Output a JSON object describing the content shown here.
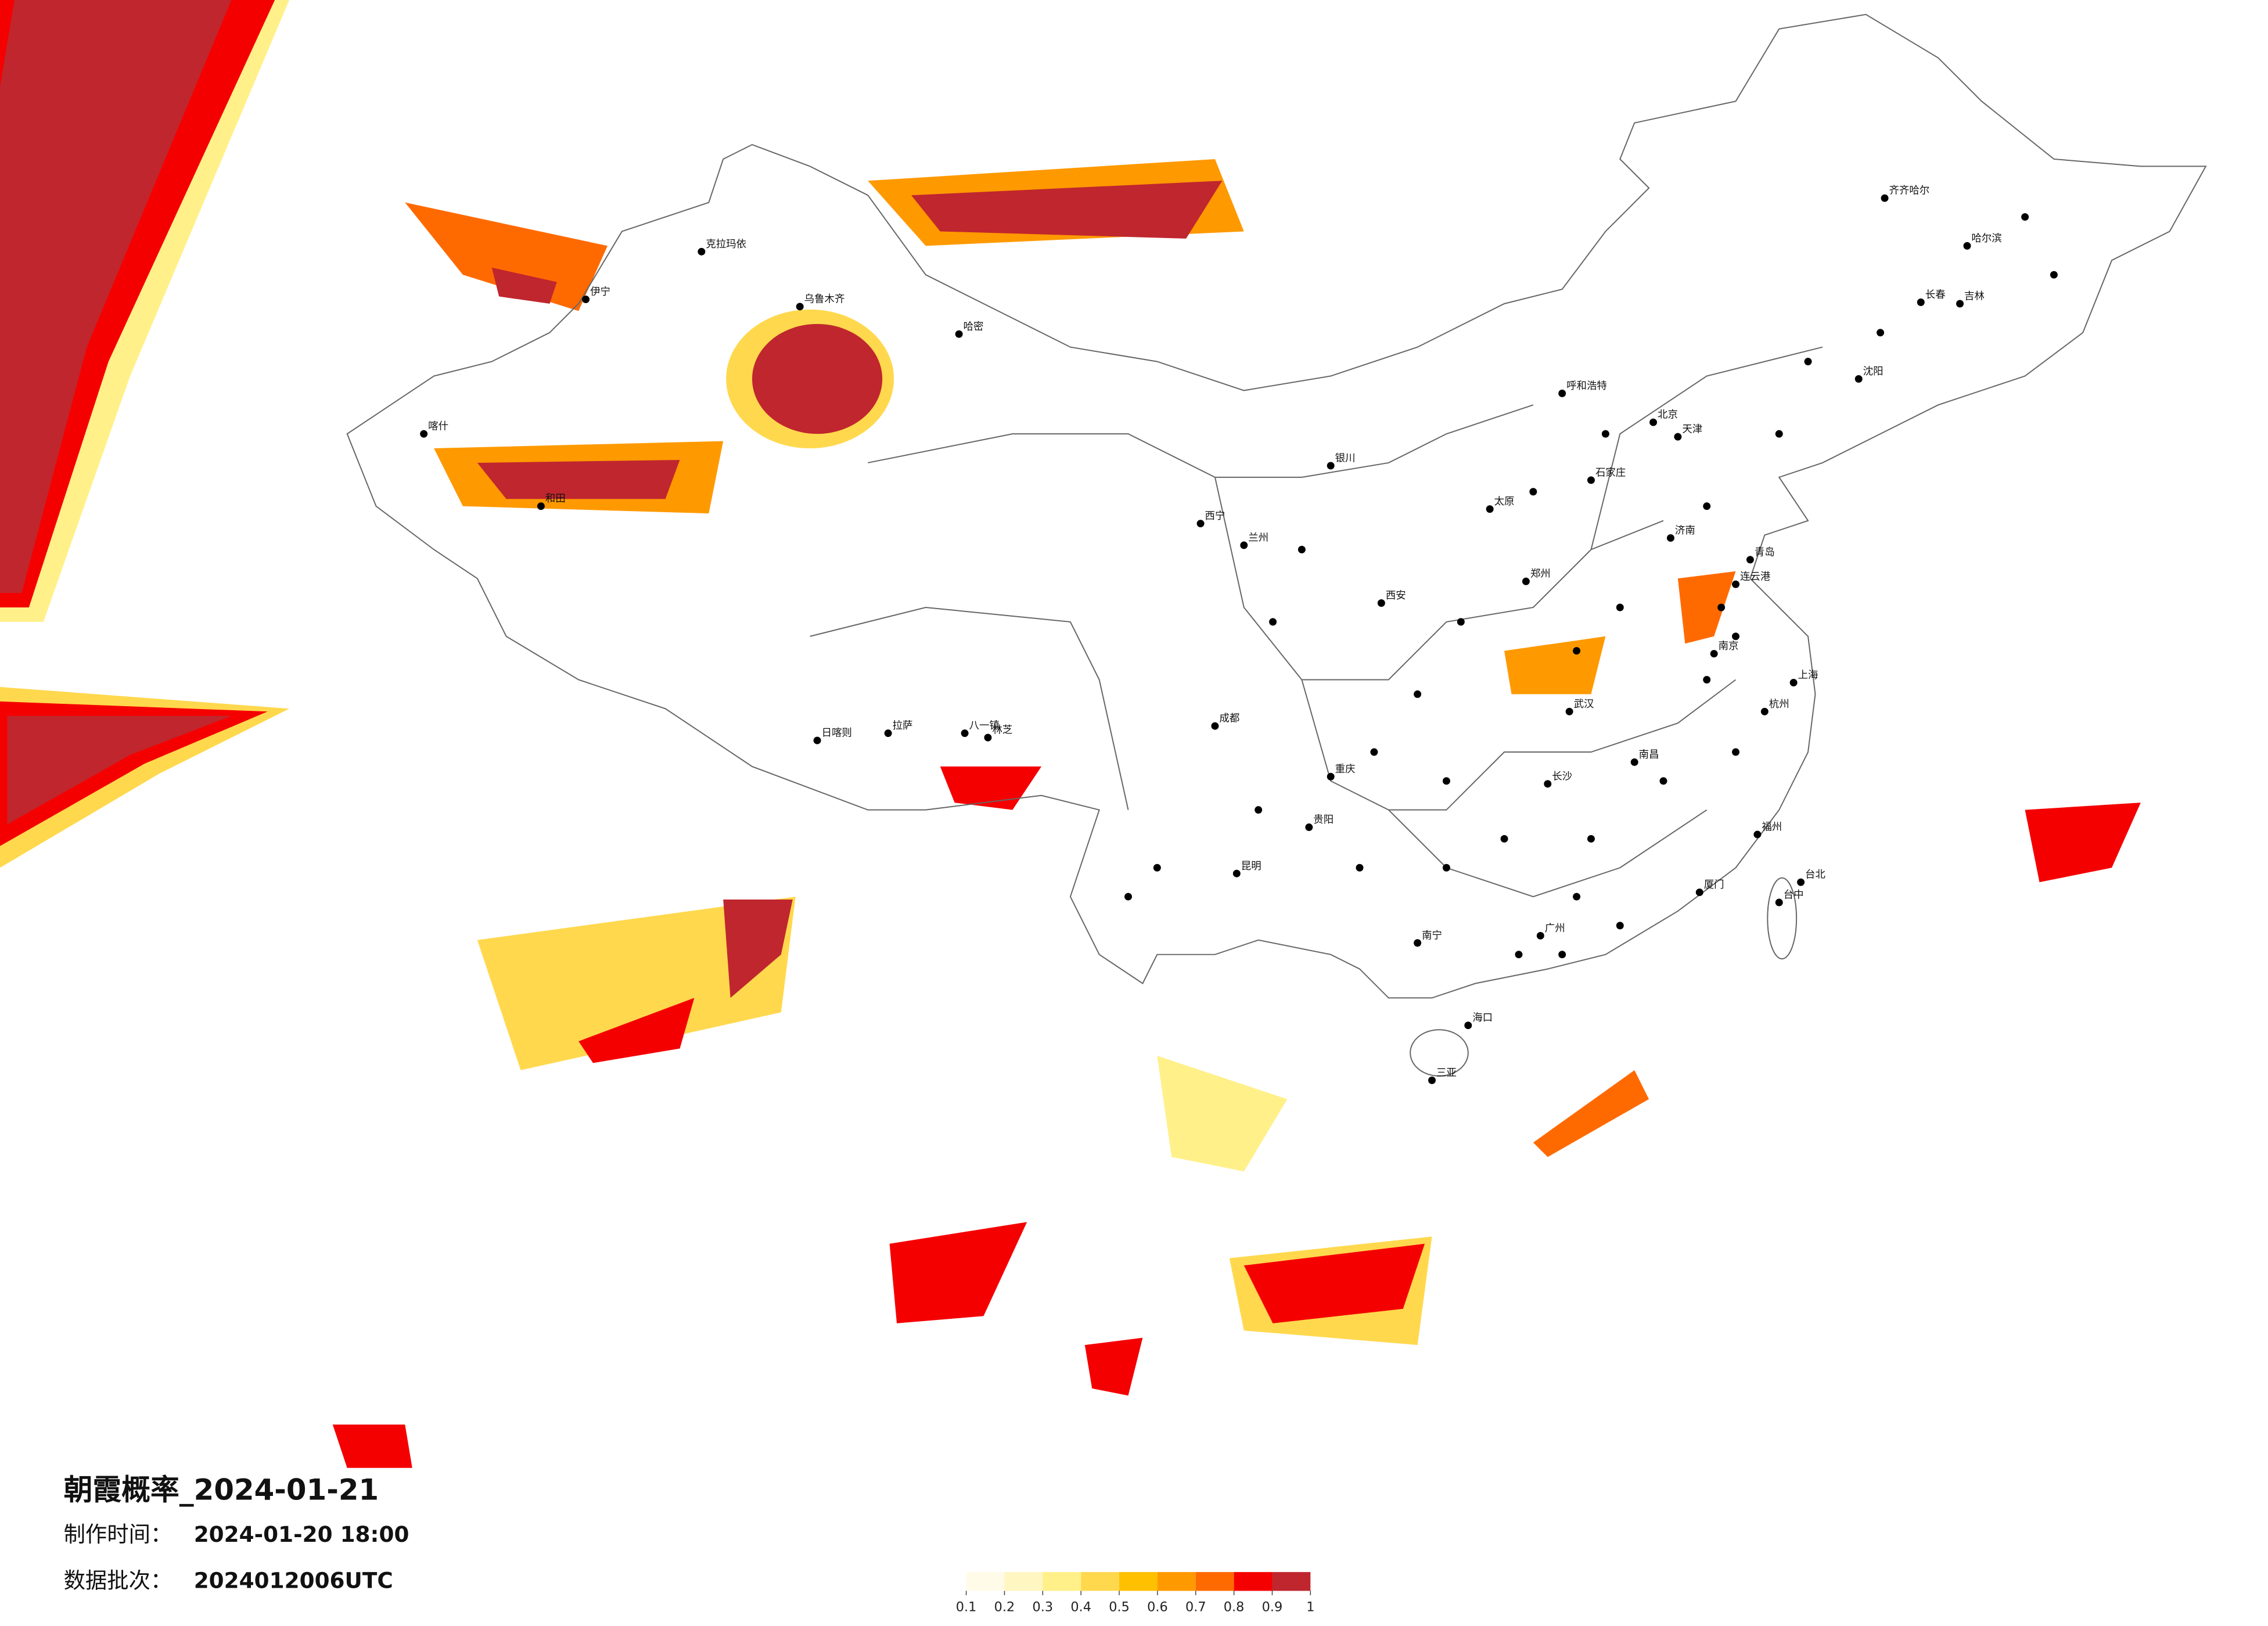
{
  "map": {
    "title": "朝霞概率_2024-01-21",
    "production_time": {
      "label": "制作时间：",
      "value": "2024-01-20 18:00"
    },
    "data_batch": {
      "label": "数据批次：",
      "value": "2024012006UTC"
    },
    "legend": {
      "ticks": [
        0.1,
        0.2,
        0.3,
        0.4,
        0.5,
        0.6,
        0.7,
        0.8,
        0.9,
        1
      ],
      "colors": [
        "#fffbe8",
        "#fff6c2",
        "#fff08a",
        "#ffd84d",
        "#ffc000",
        "#ff9900",
        "#ff6a00",
        "#f50000",
        "#c0262e"
      ]
    },
    "cities": [
      "北京",
      "天津",
      "石家庄",
      "太原",
      "呼和浩特",
      "哈尔滨",
      "齐齐哈尔",
      "长春",
      "吉林",
      "沈阳",
      "济南",
      "青岛",
      "连云港",
      "郑州",
      "西安",
      "银川",
      "兰州",
      "西宁",
      "乌鲁木齐",
      "克拉玛依",
      "伊宁",
      "喀什",
      "和田",
      "哈密",
      "日喀则",
      "拉萨",
      "八一镇",
      "林芝",
      "成都",
      "重庆",
      "贵阳",
      "昆明",
      "南宁",
      "广州",
      "海口",
      "三亚",
      "武汉",
      "长沙",
      "南昌",
      "南京",
      "上海",
      "杭州",
      "福州",
      "厦门",
      "台北",
      "台中"
    ]
  }
}
